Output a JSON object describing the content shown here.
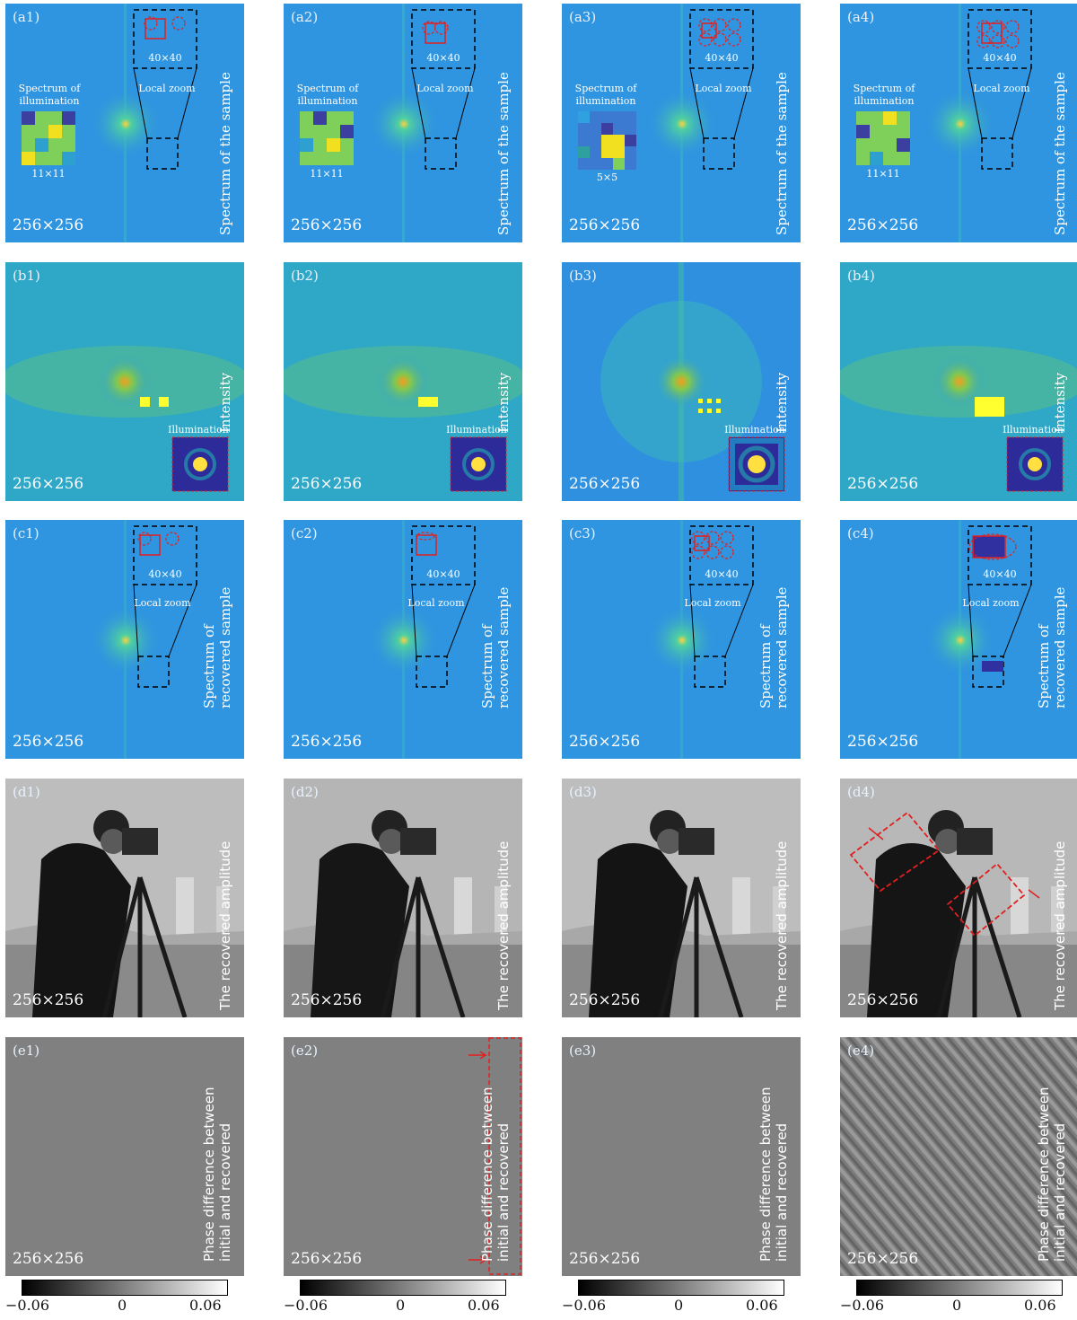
{
  "rows": {
    "a": {
      "title": "Spectrum of the sample",
      "zoom_size": "40×40",
      "zoom_label": "Local zoom",
      "illum_label_1": "Spectrum of",
      "illum_label_2": "illumination",
      "panels": [
        {
          "label": "(a1)",
          "size": "256×256",
          "illum_size": "11×11"
        },
        {
          "label": "(a2)",
          "size": "256×256",
          "illum_size": "11×11"
        },
        {
          "label": "(a3)",
          "size": "256×256",
          "illum_size": "5×5"
        },
        {
          "label": "(a4)",
          "size": "256×256",
          "illum_size": "11×11"
        }
      ]
    },
    "b": {
      "title": "Intensity",
      "illum_label": "Illumination",
      "panels": [
        {
          "label": "(b1)",
          "size": "256×256"
        },
        {
          "label": "(b2)",
          "size": "256×256"
        },
        {
          "label": "(b3)",
          "size": "256×256"
        },
        {
          "label": "(b4)",
          "size": "256×256"
        }
      ]
    },
    "c": {
      "title_1": "Spectrum of",
      "title_2": "recovered sample",
      "zoom_size": "40×40",
      "zoom_label": "Local zoom",
      "panels": [
        {
          "label": "(c1)",
          "size": "256×256"
        },
        {
          "label": "(c2)",
          "size": "256×256"
        },
        {
          "label": "(c3)",
          "size": "256×256"
        },
        {
          "label": "(c4)",
          "size": "256×256"
        }
      ]
    },
    "d": {
      "title": "The recovered amplitude",
      "panels": [
        {
          "label": "(d1)",
          "size": "256×256"
        },
        {
          "label": "(d2)",
          "size": "256×256"
        },
        {
          "label": "(d3)",
          "size": "256×256"
        },
        {
          "label": "(d4)",
          "size": "256×256"
        }
      ]
    },
    "e": {
      "title_1": "Phase difference between",
      "title_2": "initial and recovered",
      "panels": [
        {
          "label": "(e1)",
          "size": "256×256"
        },
        {
          "label": "(e2)",
          "size": "256×256"
        },
        {
          "label": "(e3)",
          "size": "256×256"
        },
        {
          "label": "(e4)",
          "size": "256×256"
        }
      ]
    }
  },
  "colorbar": {
    "min": "−0.06",
    "mid": "0",
    "max": "0.06"
  },
  "colors": {
    "spectrum_bg": "#2f9be0",
    "gray_bg": "#808080",
    "dashed_red": "#e02020"
  }
}
